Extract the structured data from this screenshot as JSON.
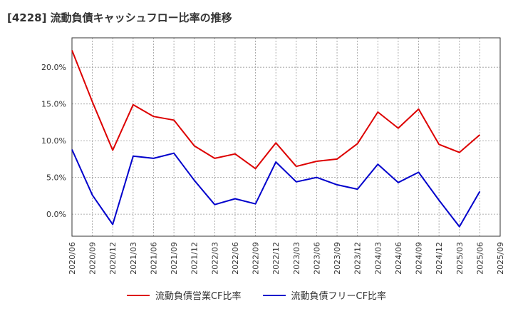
{
  "chart_data": {
    "type": "line",
    "title": "[4228]  流動負債キャッシュフロー比率の推移",
    "xlabel": "",
    "ylabel": "",
    "x": [
      "2020/06",
      "2020/09",
      "2020/12",
      "2021/03",
      "2021/06",
      "2021/09",
      "2021/12",
      "2022/03",
      "2022/06",
      "2022/09",
      "2022/12",
      "2023/03",
      "2023/06",
      "2023/09",
      "2023/12",
      "2024/03",
      "2024/06",
      "2024/09",
      "2024/12",
      "2025/03",
      "2025/06",
      "2025/09"
    ],
    "ylim": [
      -3,
      24
    ],
    "yticks": [
      0,
      5,
      10,
      15,
      20
    ],
    "ytick_labels": [
      "0.0%",
      "5.0%",
      "10.0%",
      "15.0%",
      "20.0%"
    ],
    "grid": true,
    "legend_position": "bottom",
    "series": [
      {
        "name": "流動負債営業CF比率",
        "color": "#dd0000",
        "values": [
          22.3,
          15.3,
          8.7,
          14.9,
          13.3,
          12.8,
          9.3,
          7.6,
          8.2,
          6.2,
          9.7,
          6.5,
          7.2,
          7.5,
          9.6,
          13.9,
          11.7,
          14.3,
          9.5,
          8.4,
          10.8,
          null
        ]
      },
      {
        "name": "流動負債フリーCF比率",
        "color": "#0000cc",
        "values": [
          8.8,
          2.6,
          -1.4,
          7.9,
          7.6,
          8.3,
          4.6,
          1.3,
          2.1,
          1.4,
          7.1,
          4.4,
          5.0,
          4.0,
          3.4,
          6.8,
          4.3,
          5.7,
          1.9,
          -1.7,
          3.1,
          null
        ]
      }
    ]
  }
}
